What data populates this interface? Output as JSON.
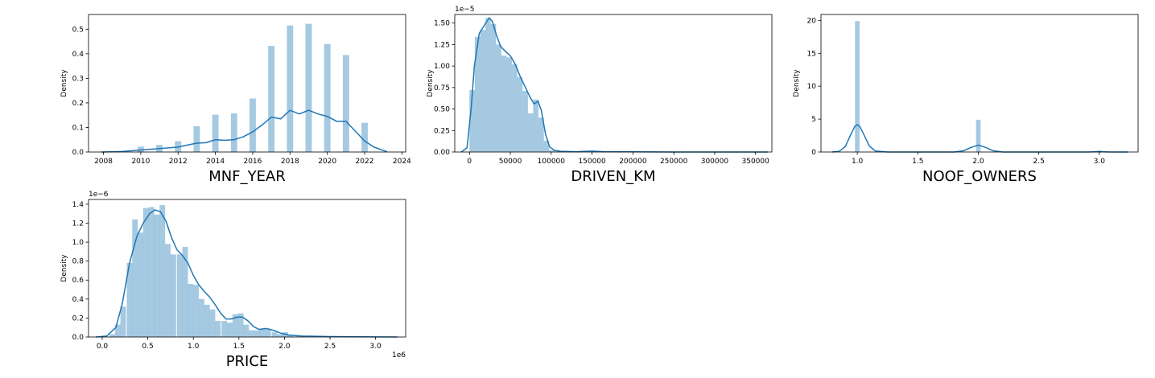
{
  "figure": {
    "ylabel": "Density"
  },
  "chart_data": [
    {
      "type": "bar",
      "xlabel": "MNF_YEAR",
      "ylabel": "Density",
      "offset": "",
      "xlim": [
        2007.2,
        2024.2
      ],
      "ylim": [
        0,
        0.56
      ],
      "xticks": [
        2008,
        2010,
        2012,
        2014,
        2016,
        2018,
        2020,
        2022,
        2024
      ],
      "xtick_labels": [
        "2008",
        "2010",
        "2012",
        "2014",
        "2016",
        "2018",
        "2020",
        "2022",
        "2024"
      ],
      "yticks": [
        0,
        0.1,
        0.2,
        0.3,
        0.4,
        0.5
      ],
      "ytick_labels": [
        "0.0",
        "0.1",
        "0.2",
        "0.3",
        "0.4",
        "0.5"
      ],
      "bar_width": 0.34,
      "bars": [
        {
          "x": 2010,
          "y": 0.022
        },
        {
          "x": 2011,
          "y": 0.029
        },
        {
          "x": 2012,
          "y": 0.044
        },
        {
          "x": 2013,
          "y": 0.105
        },
        {
          "x": 2014,
          "y": 0.152
        },
        {
          "x": 2015,
          "y": 0.157
        },
        {
          "x": 2016,
          "y": 0.218
        },
        {
          "x": 2017,
          "y": 0.432
        },
        {
          "x": 2018,
          "y": 0.515
        },
        {
          "x": 2019,
          "y": 0.522
        },
        {
          "x": 2020,
          "y": 0.44
        },
        {
          "x": 2021,
          "y": 0.395
        },
        {
          "x": 2022,
          "y": 0.119
        }
      ],
      "kde": [
        [
          2007.9,
          0.0
        ],
        [
          2009,
          0.002
        ],
        [
          2010,
          0.008
        ],
        [
          2011,
          0.014
        ],
        [
          2012,
          0.02
        ],
        [
          2012.6,
          0.03
        ],
        [
          2013,
          0.036
        ],
        [
          2013.5,
          0.038
        ],
        [
          2014,
          0.05
        ],
        [
          2014.5,
          0.048
        ],
        [
          2015,
          0.05
        ],
        [
          2015.5,
          0.062
        ],
        [
          2016,
          0.082
        ],
        [
          2016.5,
          0.11
        ],
        [
          2017,
          0.142
        ],
        [
          2017.5,
          0.135
        ],
        [
          2018,
          0.17
        ],
        [
          2018.5,
          0.155
        ],
        [
          2019,
          0.17
        ],
        [
          2019.5,
          0.155
        ],
        [
          2020,
          0.145
        ],
        [
          2020.5,
          0.125
        ],
        [
          2021,
          0.125
        ],
        [
          2021.5,
          0.085
        ],
        [
          2022,
          0.045
        ],
        [
          2022.5,
          0.02
        ],
        [
          2023.2,
          0.001
        ]
      ]
    },
    {
      "type": "bar",
      "xlabel": "DRIVEN_KM",
      "ylabel": "Density",
      "offset": "1e−5",
      "xlim": [
        -18000,
        370000
      ],
      "ylim": [
        0,
        1.6
      ],
      "xticks": [
        0,
        50000,
        100000,
        150000,
        200000,
        250000,
        300000,
        350000
      ],
      "xtick_labels": [
        "0",
        "50000",
        "100000",
        "150000",
        "200000",
        "250000",
        "300000",
        "350000"
      ],
      "yticks": [
        0,
        0.25,
        0.5,
        0.75,
        1.0,
        1.25,
        1.5
      ],
      "ytick_labels": [
        "0.00",
        "0.25",
        "0.50",
        "0.75",
        "1.00",
        "1.25",
        "1.50"
      ],
      "bar_width": 6500,
      "bars": [
        {
          "x": 3250,
          "y": 0.72
        },
        {
          "x": 9750,
          "y": 1.34
        },
        {
          "x": 16250,
          "y": 1.42
        },
        {
          "x": 22750,
          "y": 1.56
        },
        {
          "x": 29250,
          "y": 1.49
        },
        {
          "x": 35750,
          "y": 1.25
        },
        {
          "x": 42250,
          "y": 1.12
        },
        {
          "x": 48750,
          "y": 1.1
        },
        {
          "x": 55250,
          "y": 1.02
        },
        {
          "x": 61750,
          "y": 0.87
        },
        {
          "x": 68250,
          "y": 0.71
        },
        {
          "x": 74750,
          "y": 0.45
        },
        {
          "x": 81250,
          "y": 0.61
        },
        {
          "x": 87750,
          "y": 0.4
        },
        {
          "x": 94250,
          "y": 0.13
        },
        {
          "x": 100750,
          "y": 0.02
        },
        {
          "x": 107250,
          "y": 0.01
        }
      ],
      "kde": [
        [
          -10000,
          0.0
        ],
        [
          -3000,
          0.05
        ],
        [
          2000,
          0.5
        ],
        [
          6000,
          1.0
        ],
        [
          12000,
          1.38
        ],
        [
          18000,
          1.47
        ],
        [
          24000,
          1.56
        ],
        [
          28000,
          1.52
        ],
        [
          33000,
          1.36
        ],
        [
          38000,
          1.23
        ],
        [
          44000,
          1.17
        ],
        [
          50000,
          1.12
        ],
        [
          56000,
          1.02
        ],
        [
          62000,
          0.88
        ],
        [
          68000,
          0.76
        ],
        [
          74000,
          0.64
        ],
        [
          79000,
          0.56
        ],
        [
          84000,
          0.59
        ],
        [
          88000,
          0.48
        ],
        [
          93000,
          0.21
        ],
        [
          98000,
          0.06
        ],
        [
          104000,
          0.02
        ],
        [
          112000,
          0.008
        ],
        [
          130000,
          0.004
        ],
        [
          150000,
          0.01
        ],
        [
          165000,
          0.003
        ],
        [
          200000,
          0.002
        ],
        [
          250000,
          0.0
        ],
        [
          365000,
          0.0
        ]
      ]
    },
    {
      "type": "bar",
      "xlabel": "NOOF_OWNERS",
      "ylabel": "Density",
      "offset": "",
      "xlim": [
        0.7,
        3.32
      ],
      "ylim": [
        0,
        20.9
      ],
      "xticks": [
        1.0,
        1.5,
        2.0,
        2.5,
        3.0
      ],
      "xtick_labels": [
        "1.0",
        "1.5",
        "2.0",
        "2.5",
        "3.0"
      ],
      "yticks": [
        0,
        5,
        10,
        15,
        20
      ],
      "ytick_labels": [
        "0",
        "5",
        "10",
        "15",
        "20"
      ],
      "bar_width": 0.038,
      "bars": [
        {
          "x": 1.0,
          "y": 19.9
        },
        {
          "x": 2.0,
          "y": 4.9
        },
        {
          "x": 3.0,
          "y": 0.25
        }
      ],
      "kde": [
        [
          0.79,
          0.0
        ],
        [
          0.85,
          0.1
        ],
        [
          0.9,
          0.8
        ],
        [
          0.95,
          2.8
        ],
        [
          0.98,
          3.9
        ],
        [
          1.0,
          4.15
        ],
        [
          1.02,
          3.9
        ],
        [
          1.05,
          2.8
        ],
        [
          1.1,
          0.9
        ],
        [
          1.15,
          0.15
        ],
        [
          1.25,
          0.0
        ],
        [
          1.8,
          0.0
        ],
        [
          1.88,
          0.2
        ],
        [
          1.94,
          0.7
        ],
        [
          2.0,
          1.05
        ],
        [
          2.06,
          0.7
        ],
        [
          2.12,
          0.2
        ],
        [
          2.2,
          0.0
        ],
        [
          2.9,
          0.0
        ],
        [
          3.0,
          0.05
        ],
        [
          3.1,
          0.0
        ],
        [
          3.24,
          0.0
        ]
      ]
    },
    {
      "type": "bar",
      "xlabel": "PRICE",
      "ylabel": "Density",
      "offset": "1e−6",
      "x_offset": "1e6",
      "xlim": [
        -0.15,
        3.33
      ],
      "ylim": [
        0,
        1.45
      ],
      "xticks": [
        0.0,
        0.5,
        1.0,
        1.5,
        2.0,
        2.5,
        3.0
      ],
      "xtick_labels": [
        "0.0",
        "0.5",
        "1.0",
        "1.5",
        "2.0",
        "2.5",
        "3.0"
      ],
      "yticks": [
        0,
        0.2,
        0.4,
        0.6,
        0.8,
        1.0,
        1.2,
        1.4
      ],
      "ytick_labels": [
        "0.0",
        "0.2",
        "0.4",
        "0.6",
        "0.8",
        "1.0",
        "1.2",
        "1.4"
      ],
      "bar_width": 0.061,
      "bars": [
        {
          "x": 0.11,
          "y": 0.03
        },
        {
          "x": 0.17,
          "y": 0.13
        },
        {
          "x": 0.23,
          "y": 0.32
        },
        {
          "x": 0.3,
          "y": 0.78
        },
        {
          "x": 0.36,
          "y": 1.24
        },
        {
          "x": 0.42,
          "y": 1.1
        },
        {
          "x": 0.48,
          "y": 1.36
        },
        {
          "x": 0.54,
          "y": 1.37
        },
        {
          "x": 0.6,
          "y": 1.29
        },
        {
          "x": 0.66,
          "y": 1.39
        },
        {
          "x": 0.72,
          "y": 0.98
        },
        {
          "x": 0.78,
          "y": 0.87
        },
        {
          "x": 0.85,
          "y": 0.87
        },
        {
          "x": 0.91,
          "y": 0.95
        },
        {
          "x": 0.97,
          "y": 0.56
        },
        {
          "x": 1.03,
          "y": 0.55
        },
        {
          "x": 1.09,
          "y": 0.4
        },
        {
          "x": 1.15,
          "y": 0.34
        },
        {
          "x": 1.21,
          "y": 0.29
        },
        {
          "x": 1.27,
          "y": 0.17
        },
        {
          "x": 1.34,
          "y": 0.17
        },
        {
          "x": 1.4,
          "y": 0.15
        },
        {
          "x": 1.46,
          "y": 0.24
        },
        {
          "x": 1.52,
          "y": 0.25
        },
        {
          "x": 1.58,
          "y": 0.13
        },
        {
          "x": 1.64,
          "y": 0.07
        },
        {
          "x": 1.7,
          "y": 0.07
        },
        {
          "x": 1.76,
          "y": 0.09
        },
        {
          "x": 1.82,
          "y": 0.08
        },
        {
          "x": 1.89,
          "y": 0.05
        },
        {
          "x": 1.95,
          "y": 0.03
        },
        {
          "x": 2.01,
          "y": 0.05
        },
        {
          "x": 2.07,
          "y": 0.02
        },
        {
          "x": 2.15,
          "y": 0.01
        },
        {
          "x": 2.3,
          "y": 0.01
        }
      ],
      "kde": [
        [
          -0.07,
          0.0
        ],
        [
          0.05,
          0.01
        ],
        [
          0.15,
          0.1
        ],
        [
          0.22,
          0.35
        ],
        [
          0.3,
          0.78
        ],
        [
          0.38,
          1.06
        ],
        [
          0.45,
          1.2
        ],
        [
          0.52,
          1.3
        ],
        [
          0.58,
          1.34
        ],
        [
          0.64,
          1.32
        ],
        [
          0.7,
          1.22
        ],
        [
          0.76,
          1.05
        ],
        [
          0.82,
          0.92
        ],
        [
          0.88,
          0.86
        ],
        [
          0.94,
          0.78
        ],
        [
          1.0,
          0.65
        ],
        [
          1.06,
          0.55
        ],
        [
          1.12,
          0.48
        ],
        [
          1.18,
          0.42
        ],
        [
          1.24,
          0.34
        ],
        [
          1.3,
          0.25
        ],
        [
          1.36,
          0.19
        ],
        [
          1.42,
          0.19
        ],
        [
          1.48,
          0.21
        ],
        [
          1.54,
          0.21
        ],
        [
          1.6,
          0.17
        ],
        [
          1.66,
          0.11
        ],
        [
          1.72,
          0.08
        ],
        [
          1.8,
          0.09
        ],
        [
          1.88,
          0.07
        ],
        [
          1.96,
          0.04
        ],
        [
          2.05,
          0.02
        ],
        [
          2.2,
          0.01
        ],
        [
          2.5,
          0.004
        ],
        [
          3.0,
          0.001
        ],
        [
          3.24,
          0.0
        ]
      ]
    }
  ]
}
